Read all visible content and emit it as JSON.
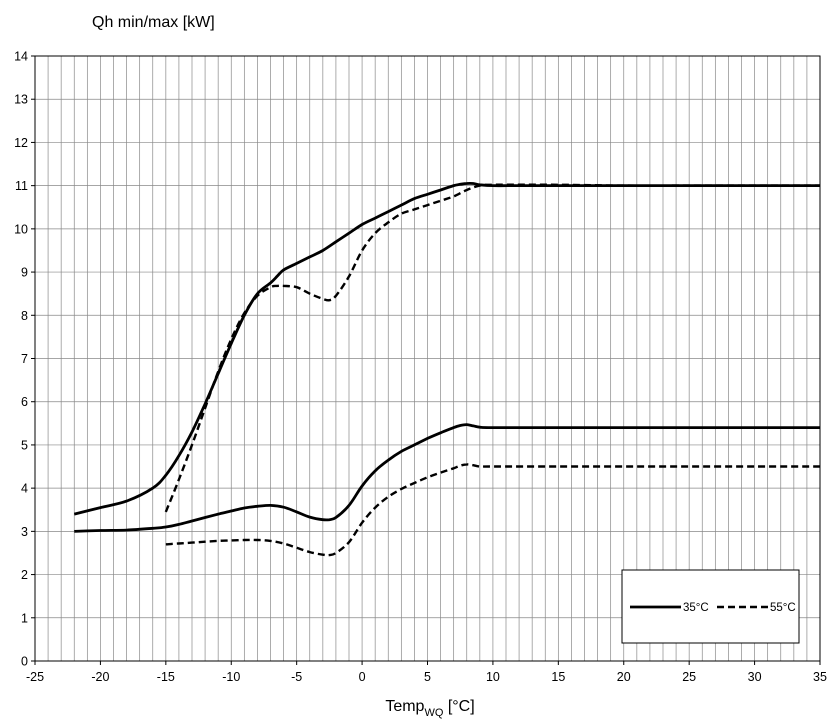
{
  "chart_data": {
    "type": "line",
    "ylabel": "Qh min/max [kW]",
    "xlabel_main": "Temp",
    "xlabel_sub": "WQ",
    "xlabel_unit": " [°C]",
    "xlim": [
      -25,
      35
    ],
    "ylim": [
      0,
      14
    ],
    "xticks": [
      -25,
      -20,
      -15,
      -10,
      -5,
      0,
      5,
      10,
      15,
      20,
      25,
      30,
      35
    ],
    "yticks": [
      0,
      1,
      2,
      3,
      4,
      5,
      6,
      7,
      8,
      9,
      10,
      11,
      12,
      13,
      14
    ],
    "grid": true,
    "minor_x_grid_step": 1,
    "legend_placement": "bottom-right",
    "colors": {
      "line": "#000000",
      "grid": "#888888",
      "background": "#ffffff"
    },
    "series": [
      {
        "name": "35°C",
        "dash": "solid",
        "label_visible": true,
        "x": [
          -22,
          -20,
          -18,
          -16,
          -15,
          -14,
          -13,
          -12,
          -11,
          -10,
          -9,
          -8,
          -7,
          -6.5,
          -6,
          -5,
          -4,
          -3,
          -2,
          -1,
          0,
          1,
          2,
          3,
          4,
          5,
          6,
          7,
          7.5,
          8,
          8.5,
          9,
          10,
          12,
          15,
          20,
          25,
          30,
          35
        ],
        "values": [
          3.4,
          3.55,
          3.7,
          4.0,
          4.3,
          4.75,
          5.3,
          5.95,
          6.65,
          7.35,
          8.0,
          8.5,
          8.75,
          8.9,
          9.05,
          9.2,
          9.35,
          9.5,
          9.7,
          9.9,
          10.1,
          10.25,
          10.4,
          10.55,
          10.7,
          10.8,
          10.9,
          11.0,
          11.03,
          11.05,
          11.05,
          11.02,
          11.0,
          11.0,
          11.0,
          11.0,
          11.0,
          11.0,
          11.0
        ]
      },
      {
        "name": "55°C",
        "dash": "dashed",
        "label_visible": true,
        "x": [
          -15,
          -14,
          -13,
          -12,
          -11,
          -10,
          -9,
          -8,
          -7,
          -6.5,
          -6,
          -5,
          -4,
          -3,
          -2.5,
          -2,
          -1,
          0,
          1,
          2,
          3,
          4,
          5,
          6,
          7,
          8,
          9,
          10,
          15,
          20,
          25,
          30,
          35
        ],
        "values": [
          3.45,
          4.2,
          5.0,
          5.85,
          6.7,
          7.45,
          8.05,
          8.45,
          8.65,
          8.68,
          8.68,
          8.65,
          8.5,
          8.38,
          8.35,
          8.45,
          8.9,
          9.5,
          9.9,
          10.15,
          10.35,
          10.45,
          10.55,
          10.65,
          10.75,
          10.9,
          11.0,
          11.02,
          11.02,
          11.0,
          11.0,
          11.0,
          11.0
        ]
      },
      {
        "name": "35°C",
        "dash": "solid",
        "label_visible": false,
        "x": [
          -22,
          -20,
          -18,
          -16,
          -15,
          -14,
          -13,
          -12,
          -11,
          -10,
          -9,
          -8,
          -7,
          -6,
          -5,
          -4,
          -3,
          -2.5,
          -2,
          -1,
          0,
          1,
          2,
          3,
          4,
          5,
          6,
          7,
          7.5,
          8,
          8.5,
          9,
          10,
          15,
          20,
          25,
          30,
          35
        ],
        "values": [
          3.0,
          3.02,
          3.03,
          3.07,
          3.1,
          3.16,
          3.24,
          3.32,
          3.4,
          3.47,
          3.54,
          3.58,
          3.6,
          3.56,
          3.45,
          3.33,
          3.27,
          3.27,
          3.32,
          3.6,
          4.05,
          4.4,
          4.65,
          4.85,
          5.0,
          5.15,
          5.28,
          5.4,
          5.45,
          5.47,
          5.44,
          5.41,
          5.4,
          5.4,
          5.4,
          5.4,
          5.4,
          5.4
        ]
      },
      {
        "name": "55°C",
        "dash": "dashed",
        "label_visible": false,
        "x": [
          -15,
          -14,
          -13,
          -12,
          -11,
          -10,
          -9,
          -8,
          -7,
          -6,
          -5,
          -4,
          -3,
          -2.5,
          -2,
          -1,
          0,
          1,
          2,
          3,
          4,
          5,
          6,
          7,
          7.5,
          8,
          8.5,
          9,
          10,
          15,
          20,
          25,
          30,
          35
        ],
        "values": [
          2.7,
          2.72,
          2.74,
          2.76,
          2.78,
          2.79,
          2.8,
          2.8,
          2.78,
          2.72,
          2.62,
          2.52,
          2.46,
          2.45,
          2.5,
          2.75,
          3.2,
          3.55,
          3.8,
          3.98,
          4.12,
          4.25,
          4.36,
          4.46,
          4.52,
          4.55,
          4.53,
          4.5,
          4.5,
          4.5,
          4.5,
          4.5,
          4.5,
          4.5
        ]
      }
    ]
  }
}
